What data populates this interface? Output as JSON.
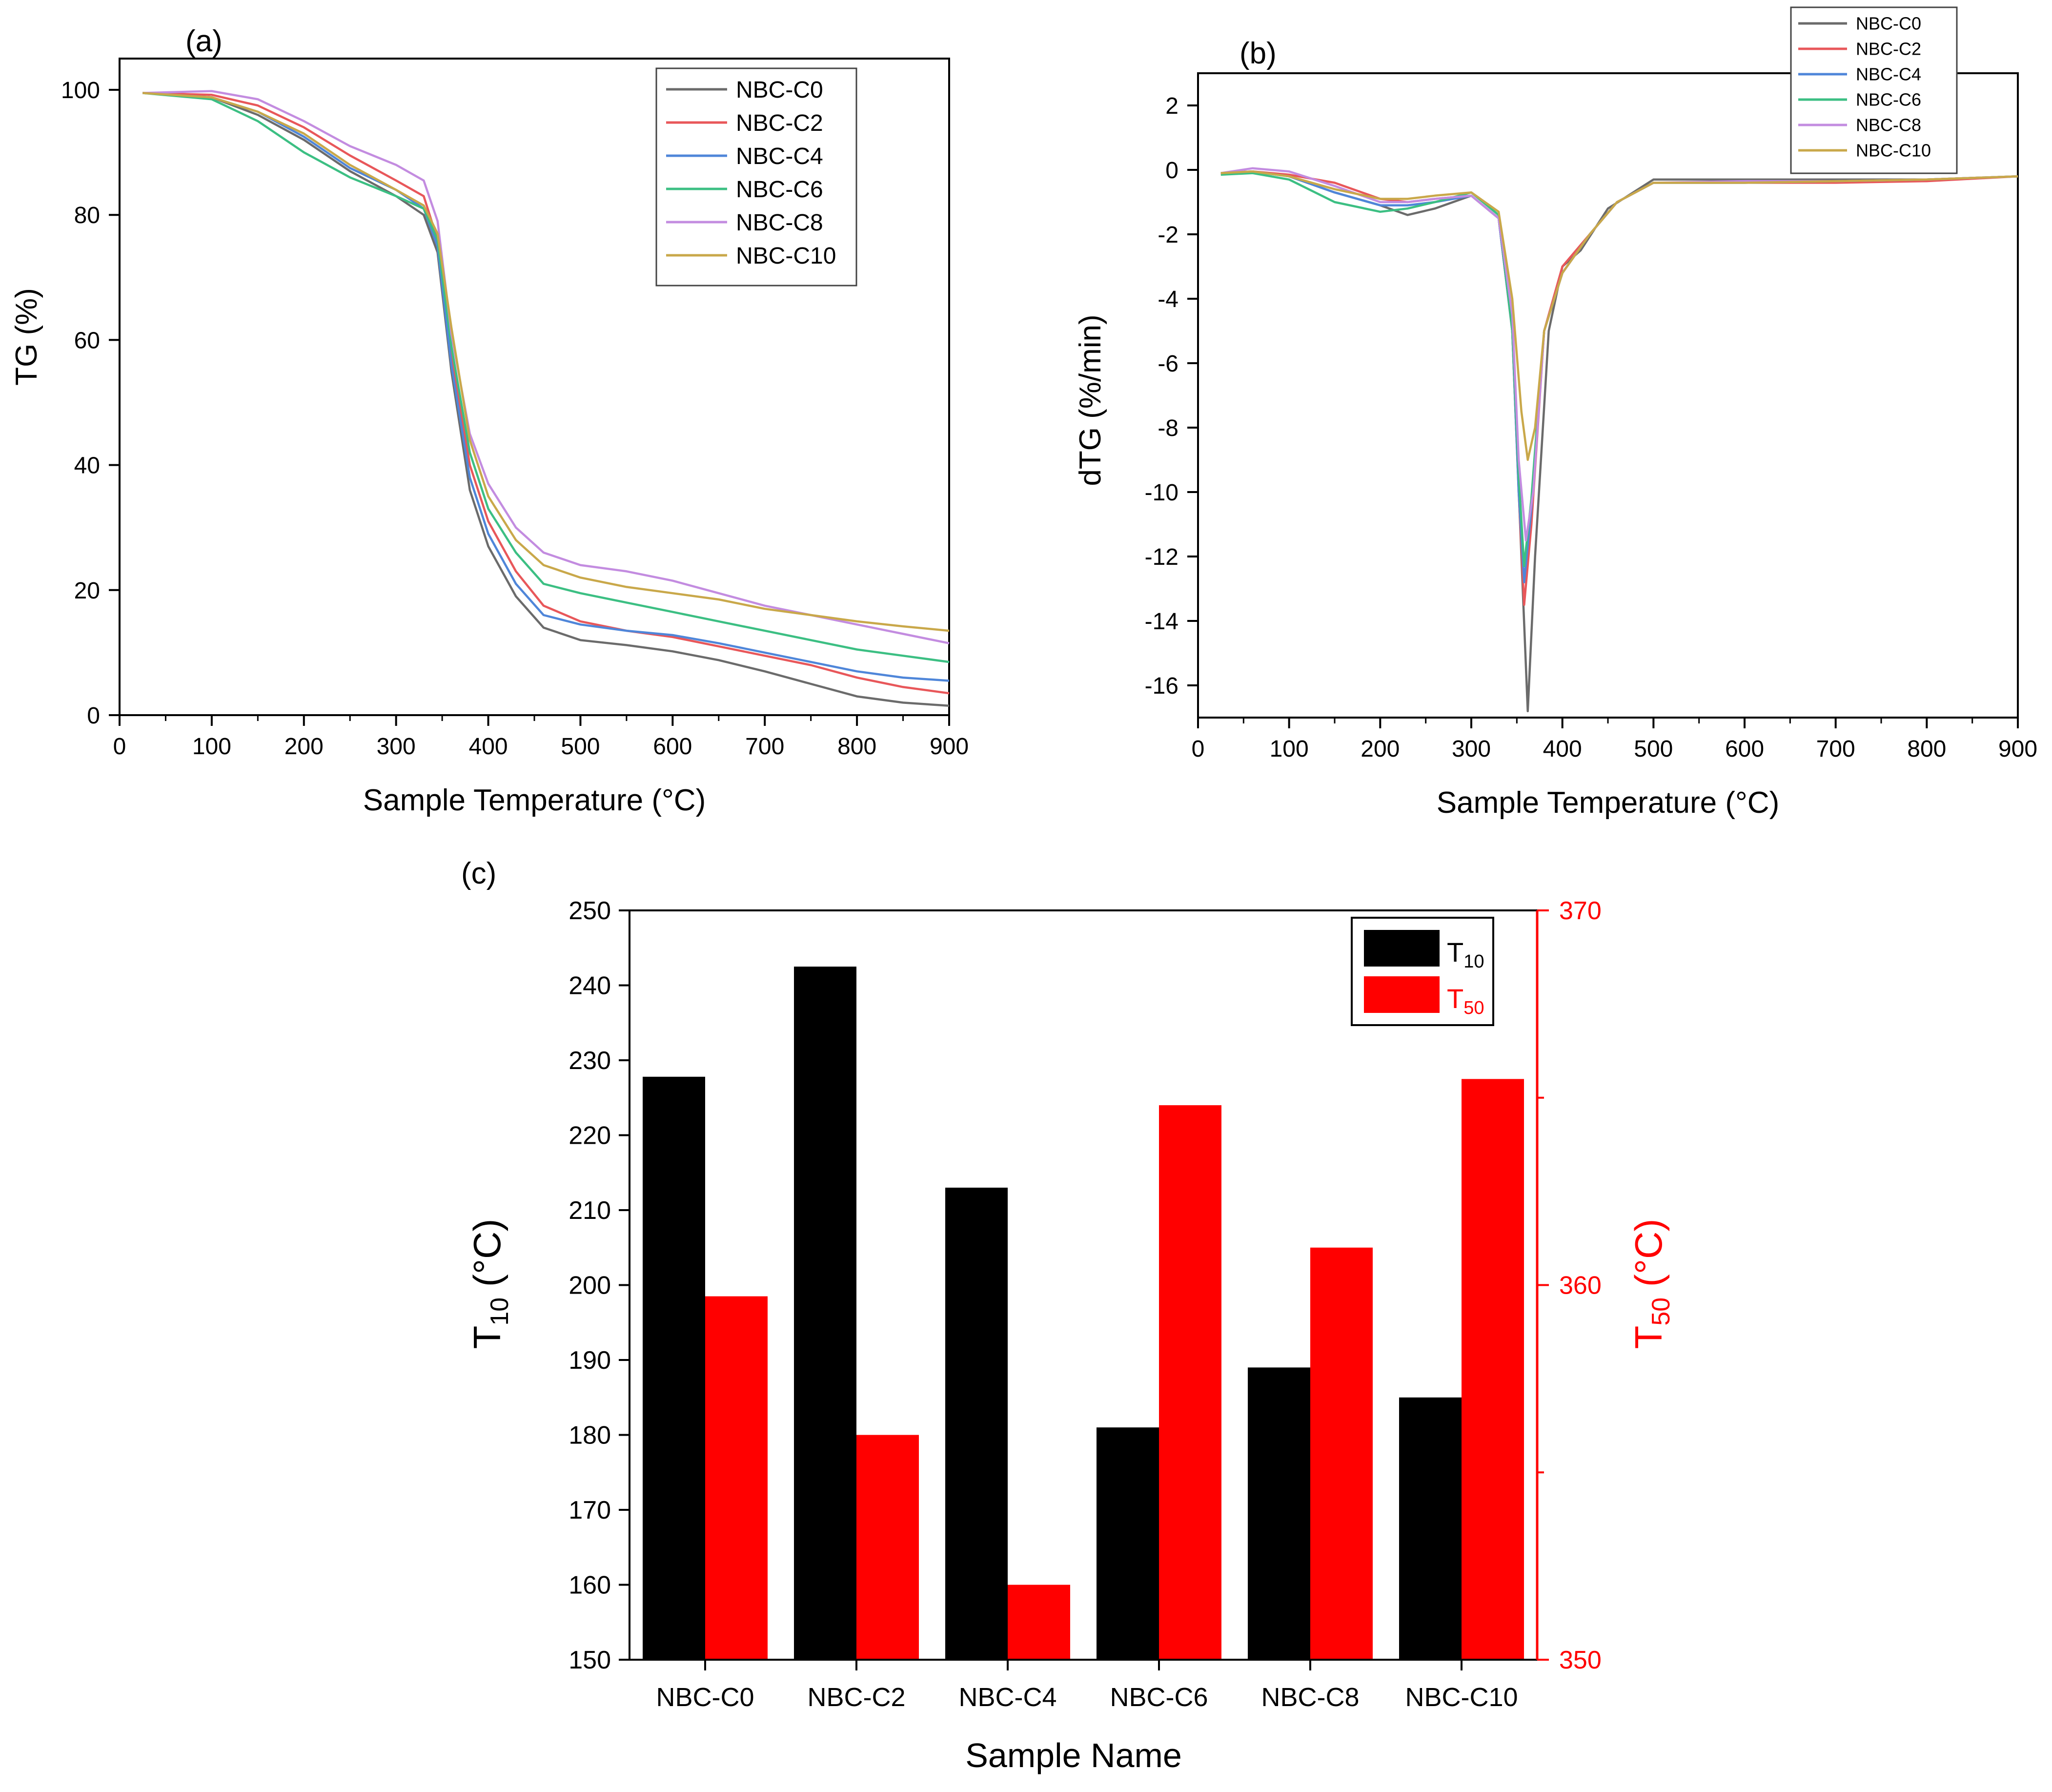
{
  "figure": {
    "panels": [
      "(a)",
      "(b)",
      "(c)"
    ]
  },
  "chart_data": [
    {
      "panel": "(a)",
      "type": "line",
      "xlabel": "Sample Temperature (°C)",
      "ylabel": "TG (%)",
      "xlim": [
        0,
        900
      ],
      "ylim": [
        0,
        105
      ],
      "xticks": [
        0,
        100,
        200,
        300,
        400,
        500,
        600,
        700,
        800,
        900
      ],
      "yticks": [
        0,
        20,
        40,
        60,
        80,
        100
      ],
      "grid": false,
      "legend_position": "top-right",
      "series": [
        {
          "name": "NBC-C0",
          "color": "#6b6b6b",
          "x": [
            25,
            100,
            150,
            200,
            250,
            300,
            330,
            345,
            360,
            380,
            400,
            430,
            460,
            500,
            550,
            600,
            650,
            700,
            750,
            800,
            850,
            900
          ],
          "y": [
            99.5,
            98.8,
            96,
            92,
            87,
            83,
            80,
            74,
            55,
            36,
            27,
            19,
            14,
            12,
            11.2,
            10.2,
            8.8,
            7,
            5,
            3,
            2,
            1.5
          ]
        },
        {
          "name": "NBC-C2",
          "color": "#e8575a",
          "x": [
            25,
            100,
            150,
            200,
            250,
            300,
            330,
            345,
            360,
            380,
            400,
            430,
            460,
            500,
            550,
            600,
            650,
            700,
            750,
            800,
            850,
            900
          ],
          "y": [
            99.5,
            99.2,
            97.5,
            94,
            89.5,
            85.5,
            83,
            76,
            58,
            40,
            31,
            23,
            17.5,
            15,
            13.5,
            12.5,
            11,
            9.5,
            8,
            6,
            4.5,
            3.5
          ]
        },
        {
          "name": "NBC-C4",
          "color": "#4f86d9",
          "x": [
            25,
            100,
            150,
            200,
            250,
            300,
            330,
            345,
            360,
            380,
            400,
            430,
            460,
            500,
            550,
            600,
            650,
            700,
            750,
            800,
            850,
            900
          ],
          "y": [
            99.5,
            98.8,
            96.5,
            92.5,
            87.5,
            84,
            81,
            75,
            56,
            38,
            29,
            21,
            16,
            14.5,
            13.5,
            12.8,
            11.5,
            10,
            8.5,
            7,
            6,
            5.5
          ]
        },
        {
          "name": "NBC-C6",
          "color": "#3cbf83",
          "x": [
            25,
            100,
            150,
            200,
            250,
            300,
            330,
            345,
            360,
            380,
            400,
            430,
            460,
            500,
            550,
            600,
            650,
            700,
            750,
            800,
            850,
            900
          ],
          "y": [
            99.5,
            98.5,
            95,
            90,
            86,
            83,
            81,
            76,
            59,
            42,
            33,
            26,
            21,
            19.5,
            18,
            16.5,
            15,
            13.5,
            12,
            10.5,
            9.5,
            8.5
          ]
        },
        {
          "name": "NBC-C8",
          "color": "#c38ce0",
          "x": [
            25,
            100,
            150,
            200,
            250,
            300,
            330,
            345,
            360,
            380,
            400,
            430,
            460,
            500,
            550,
            600,
            650,
            700,
            750,
            800,
            850,
            900
          ],
          "y": [
            99.5,
            99.8,
            98.5,
            95,
            91,
            88,
            85.5,
            79,
            61,
            45,
            37,
            30,
            26,
            24,
            23,
            21.5,
            19.5,
            17.5,
            16,
            14.5,
            13,
            11.5
          ]
        },
        {
          "name": "NBC-C10",
          "color": "#c9a84a",
          "x": [
            25,
            100,
            150,
            200,
            250,
            300,
            330,
            345,
            360,
            380,
            400,
            430,
            460,
            500,
            550,
            600,
            650,
            700,
            750,
            800,
            850,
            900
          ],
          "y": [
            99.5,
            98.8,
            96.5,
            93,
            88,
            84,
            81.5,
            77,
            62,
            44,
            35,
            28,
            24,
            22,
            20.5,
            19.5,
            18.5,
            17,
            16,
            15,
            14.2,
            13.5
          ]
        }
      ]
    },
    {
      "panel": "(b)",
      "type": "line",
      "xlabel": "Sample Temperature (°C)",
      "ylabel": "dTG (%/min)",
      "xlim": [
        0,
        900
      ],
      "ylim": [
        -17,
        3
      ],
      "xticks": [
        0,
        100,
        200,
        300,
        400,
        500,
        600,
        700,
        800,
        900
      ],
      "yticks": [
        2,
        0,
        -2,
        -4,
        -6,
        -8,
        -10,
        -12,
        -14,
        -16
      ],
      "grid": false,
      "legend_position": "top-right",
      "series": [
        {
          "name": "NBC-C0",
          "color": "#6b6b6b",
          "x": [
            25,
            60,
            100,
            150,
            200,
            230,
            260,
            300,
            330,
            345,
            355,
            362,
            370,
            385,
            400,
            420,
            450,
            500,
            600,
            700,
            800,
            900
          ],
          "y": [
            -0.1,
            -0.05,
            -0.2,
            -0.7,
            -1.1,
            -1.4,
            -1.2,
            -0.8,
            -1.5,
            -5,
            -12,
            -16.8,
            -12,
            -5,
            -3,
            -2.5,
            -1.2,
            -0.3,
            -0.3,
            -0.3,
            -0.3,
            -0.2
          ]
        },
        {
          "name": "NBC-C2",
          "color": "#e8575a",
          "x": [
            25,
            60,
            100,
            150,
            200,
            230,
            260,
            300,
            330,
            345,
            352,
            358,
            366,
            380,
            400,
            430,
            460,
            500,
            600,
            700,
            800,
            900
          ],
          "y": [
            -0.1,
            -0.05,
            -0.15,
            -0.4,
            -0.9,
            -1.0,
            -0.9,
            -0.8,
            -1.5,
            -5,
            -10,
            -13.5,
            -11,
            -5,
            -3,
            -2,
            -1,
            -0.4,
            -0.4,
            -0.4,
            -0.35,
            -0.2
          ]
        },
        {
          "name": "NBC-C4",
          "color": "#4f86d9",
          "x": [
            25,
            60,
            100,
            150,
            200,
            230,
            260,
            300,
            330,
            345,
            352,
            358,
            366,
            380,
            400,
            430,
            460,
            500,
            600,
            700,
            800,
            900
          ],
          "y": [
            -0.1,
            -0.05,
            -0.2,
            -0.7,
            -1.1,
            -1.1,
            -1.0,
            -0.8,
            -1.5,
            -5,
            -10,
            -12.8,
            -10.5,
            -5,
            -3.2,
            -2,
            -1,
            -0.4,
            -0.4,
            -0.35,
            -0.3,
            -0.2
          ]
        },
        {
          "name": "NBC-C6",
          "color": "#3cbf83",
          "x": [
            25,
            60,
            100,
            150,
            200,
            230,
            260,
            300,
            330,
            345,
            352,
            358,
            366,
            380,
            400,
            430,
            460,
            500,
            600,
            700,
            800,
            900
          ],
          "y": [
            -0.15,
            -0.1,
            -0.3,
            -1.0,
            -1.3,
            -1.2,
            -1.0,
            -0.7,
            -1.4,
            -5,
            -9.5,
            -12.3,
            -10.2,
            -5,
            -3.2,
            -2,
            -1,
            -0.4,
            -0.4,
            -0.35,
            -0.3,
            -0.2
          ]
        },
        {
          "name": "NBC-C8",
          "color": "#c38ce0",
          "x": [
            25,
            60,
            100,
            150,
            200,
            230,
            260,
            300,
            330,
            345,
            352,
            360,
            368,
            380,
            400,
            430,
            460,
            500,
            600,
            700,
            800,
            900
          ],
          "y": [
            -0.1,
            0.05,
            -0.05,
            -0.5,
            -1.0,
            -1.0,
            -0.9,
            -0.8,
            -1.5,
            -4.5,
            -9,
            -11.5,
            -10,
            -5,
            -3.2,
            -2,
            -1,
            -0.4,
            -0.35,
            -0.35,
            -0.3,
            -0.2
          ]
        },
        {
          "name": "NBC-C10",
          "color": "#c9a84a",
          "x": [
            25,
            60,
            100,
            150,
            200,
            230,
            260,
            300,
            330,
            345,
            355,
            362,
            370,
            380,
            400,
            430,
            460,
            500,
            600,
            700,
            800,
            900
          ],
          "y": [
            -0.1,
            -0.05,
            -0.2,
            -0.6,
            -0.9,
            -0.9,
            -0.8,
            -0.7,
            -1.3,
            -4,
            -7.5,
            -9,
            -8,
            -5,
            -3.2,
            -2,
            -1,
            -0.4,
            -0.4,
            -0.35,
            -0.3,
            -0.2
          ]
        }
      ]
    },
    {
      "panel": "(c)",
      "type": "bar",
      "title": "",
      "xlabel": "Sample Name",
      "ylabel_left": {
        "base": "T",
        "sub": "10",
        "rest": " (°C)"
      },
      "ylabel_right": {
        "base": "T",
        "sub": "50",
        "rest": " (°C)"
      },
      "categories": [
        "NBC-C0",
        "NBC-C2",
        "NBC-C4",
        "NBC-C6",
        "NBC-C8",
        "NBC-C10"
      ],
      "ylim_left": [
        150,
        250
      ],
      "yticks_left": [
        150,
        160,
        170,
        180,
        190,
        200,
        210,
        220,
        230,
        240,
        250
      ],
      "ylim_right": [
        350,
        370
      ],
      "yticks_right": [
        350,
        360,
        370
      ],
      "legend_position": "top-right",
      "series": [
        {
          "name": "T",
          "sub": "10",
          "axis": "left",
          "color": "#000000",
          "values": [
            227.8,
            242.5,
            213,
            181,
            189,
            185
          ]
        },
        {
          "name": "T",
          "sub": "50",
          "axis": "right",
          "color": "#ff0000",
          "values": [
            359.7,
            356,
            352,
            364.8,
            361,
            365.5
          ]
        }
      ]
    }
  ]
}
